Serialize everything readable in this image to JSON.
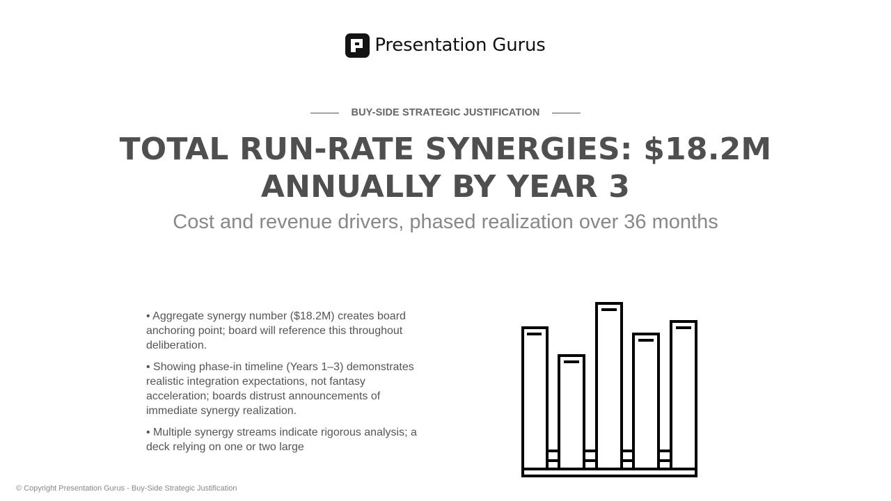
{
  "brand": {
    "name": "Presentation Gurus",
    "logo_icon": "presentation-gurus-logo-icon"
  },
  "eyebrow": "BUY-SIDE STRATEGIC JUSTIFICATION",
  "title": "TOTAL RUN-RATE SYNERGIES: $18.2M ANNUALLY BY YEAR 3",
  "subtitle": "Cost and revenue drivers, phased realization over 36 months",
  "bullets": [
    "• Aggregate synergy number ($18.2M) creates board anchoring point; board will reference this throughout deliberation.",
    "• Showing phase-in timeline (Years 1–3) demonstrates realistic integration expectations, not fantasy acceleration; boards distrust announcements of immediate synergy realization.",
    "• Multiple synergy streams indicate rigorous analysis; a deck relying on one or two large"
  ],
  "illustration": {
    "icon": "bar-chart-icon",
    "stroke_color": "#000000"
  },
  "footer": "© Copyright Presentation Gurus - Buy-Side Strategic Justification"
}
